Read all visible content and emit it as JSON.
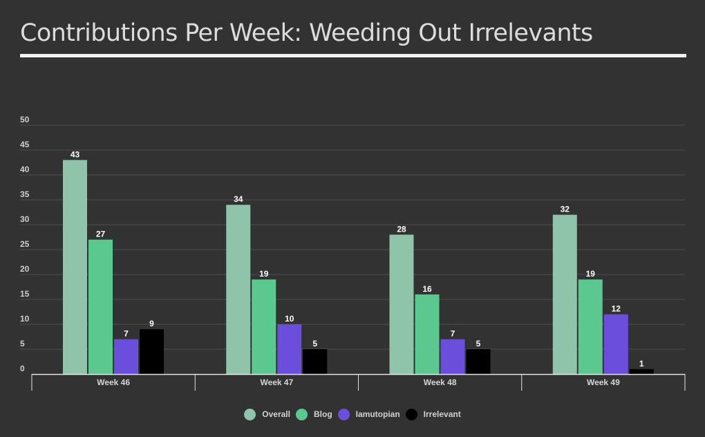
{
  "chart_data": {
    "type": "bar",
    "title": "Contributions Per Week: Weeding Out Irrelevants",
    "xlabel": "",
    "ylabel": "",
    "ylim": [
      0,
      50
    ],
    "yticks": [
      0,
      5,
      10,
      15,
      20,
      25,
      30,
      35,
      40,
      45,
      50
    ],
    "categories": [
      "Week 46",
      "Week 47",
      "Week 48",
      "Week 49"
    ],
    "series": [
      {
        "name": "Overall",
        "values": [
          43,
          34,
          28,
          32
        ],
        "color": "#8fc4aa"
      },
      {
        "name": "Blog",
        "values": [
          27,
          19,
          16,
          19
        ],
        "color": "#5bc890"
      },
      {
        "name": "Iamutopian",
        "values": [
          7,
          10,
          7,
          12
        ],
        "color": "#6b4fdc"
      },
      {
        "name": "Irrelevant",
        "values": [
          9,
          5,
          5,
          1
        ],
        "color": "#000000"
      }
    ],
    "grid": true,
    "data_labels": true,
    "legend": "bottom"
  },
  "colors": {
    "background": "#323232",
    "gridline": "#4e4e4e",
    "axis": "#e6e6e6",
    "title_rule": "#f3f3f3"
  }
}
